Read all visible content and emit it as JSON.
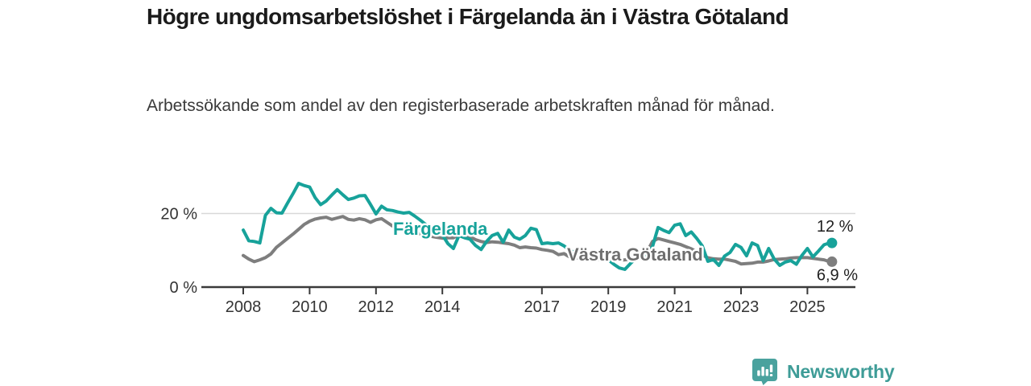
{
  "header": {
    "title": "Högre ungdomsarbetslöshet i Färgelanda än i Västra Götaland",
    "subtitle": "Arbetssökande som andel av den registerbaserade arbetskraften månad för månad."
  },
  "footer": {
    "brand": "Newsworthy",
    "logo_icon": "newsworthy-speech-bubble-bar-chart-icon"
  },
  "colors": {
    "fargelanda": "#17a29a",
    "vastra_gotaland": "#7e7e7e",
    "vastra_label": "#6e6e6e",
    "axis": "#3a3a3a",
    "tick_text": "#333333",
    "gridline": "#d8d8d8",
    "end_label": "#1f1f1f",
    "brand_teal": "#3e9c97",
    "logo_teal": "#4aa29e"
  },
  "chart_data": {
    "type": "line",
    "title": "Högre ungdomsarbetslöshet i Färgelanda än i Västra Götaland",
    "subtitle": "Arbetssökande som andel av den registerbaserade arbetskraften månad för månad.",
    "unit": "%",
    "x_start_year": 2008.0,
    "x_step_years": 0.166667,
    "x_ticks": [
      2008,
      2010,
      2012,
      2014,
      2017,
      2019,
      2021,
      2023,
      2025
    ],
    "y_ticks": [
      {
        "value": 0,
        "label": "0 %"
      },
      {
        "value": 20,
        "label": "20 %"
      }
    ],
    "ylim": [
      0,
      30
    ],
    "grid": "horizontal-20-only",
    "legend_position": "inline-labels",
    "series": [
      {
        "name": "Västra Götaland",
        "color": "#7e7e7e",
        "end_label": "6,9 %",
        "last_value": 6.9,
        "values": [
          8.6,
          7.6,
          6.9,
          7.4,
          8.0,
          9.0,
          10.8,
          12.0,
          13.2,
          14.4,
          15.7,
          17.0,
          17.9,
          18.5,
          18.8,
          19.0,
          18.4,
          18.8,
          19.2,
          18.4,
          18.2,
          18.6,
          18.3,
          17.6,
          18.3,
          18.6,
          17.6,
          16.6,
          16.0,
          15.5,
          15.2,
          14.8,
          14.4,
          14.1,
          13.8,
          13.5,
          13.3,
          13.4,
          13.4,
          14.2,
          13.9,
          13.7,
          12.9,
          12.4,
          12.1,
          12.3,
          12.2,
          12.0,
          11.8,
          11.4,
          10.7,
          10.9,
          10.7,
          10.6,
          10.2,
          10.0,
          9.7,
          8.8,
          9.1,
          8.2,
          8.0,
          7.8,
          7.7,
          7.6,
          7.5,
          7.6,
          7.5,
          7.4,
          7.3,
          7.4,
          7.6,
          8.0,
          8.4,
          9.6,
          12.4,
          13.2,
          12.8,
          12.4,
          12.0,
          11.6,
          11.0,
          10.4,
          9.6,
          8.7,
          8.0,
          7.7,
          7.6,
          7.6,
          7.3,
          7.0,
          6.3,
          6.4,
          6.5,
          6.8,
          6.8,
          7.1,
          7.5,
          7.6,
          7.7,
          7.9,
          8.0,
          8.0,
          8.0,
          7.8,
          7.6,
          7.4,
          6.9
        ]
      },
      {
        "name": "Färgelanda",
        "color": "#17a29a",
        "end_label": "12 %",
        "last_value": 12,
        "values": [
          15.5,
          12.6,
          12.4,
          12.0,
          19.5,
          21.4,
          20.2,
          20.1,
          22.8,
          25.4,
          28.2,
          27.6,
          27.2,
          24.3,
          22.4,
          23.4,
          25.0,
          26.5,
          25.1,
          23.8,
          24.2,
          24.8,
          24.9,
          22.5,
          19.9,
          22.0,
          21.0,
          20.8,
          20.4,
          20.1,
          20.3,
          19.3,
          18.2,
          17.0,
          15.9,
          14.9,
          14.2,
          11.8,
          10.5,
          14.0,
          13.4,
          13.0,
          11.3,
          10.2,
          12.4,
          14.0,
          14.6,
          12.2,
          15.5,
          13.6,
          13.0,
          14.0,
          16.0,
          15.6,
          11.8,
          12.0,
          11.8,
          12.0,
          11.2,
          10.0,
          9.4,
          8.8,
          8.3,
          8.0,
          7.6,
          7.8,
          7.4,
          6.2,
          5.2,
          4.8,
          6.4,
          7.8,
          8.2,
          9.0,
          11.0,
          16.2,
          15.4,
          14.8,
          16.8,
          17.2,
          14.0,
          15.0,
          13.2,
          11.2,
          7.0,
          7.5,
          5.9,
          8.4,
          9.4,
          11.6,
          10.8,
          8.5,
          12.0,
          11.3,
          7.2,
          10.5,
          7.6,
          5.9,
          6.8,
          7.2,
          6.2,
          8.6,
          10.5,
          8.2,
          9.8,
          11.5,
          12.0
        ]
      }
    ]
  }
}
